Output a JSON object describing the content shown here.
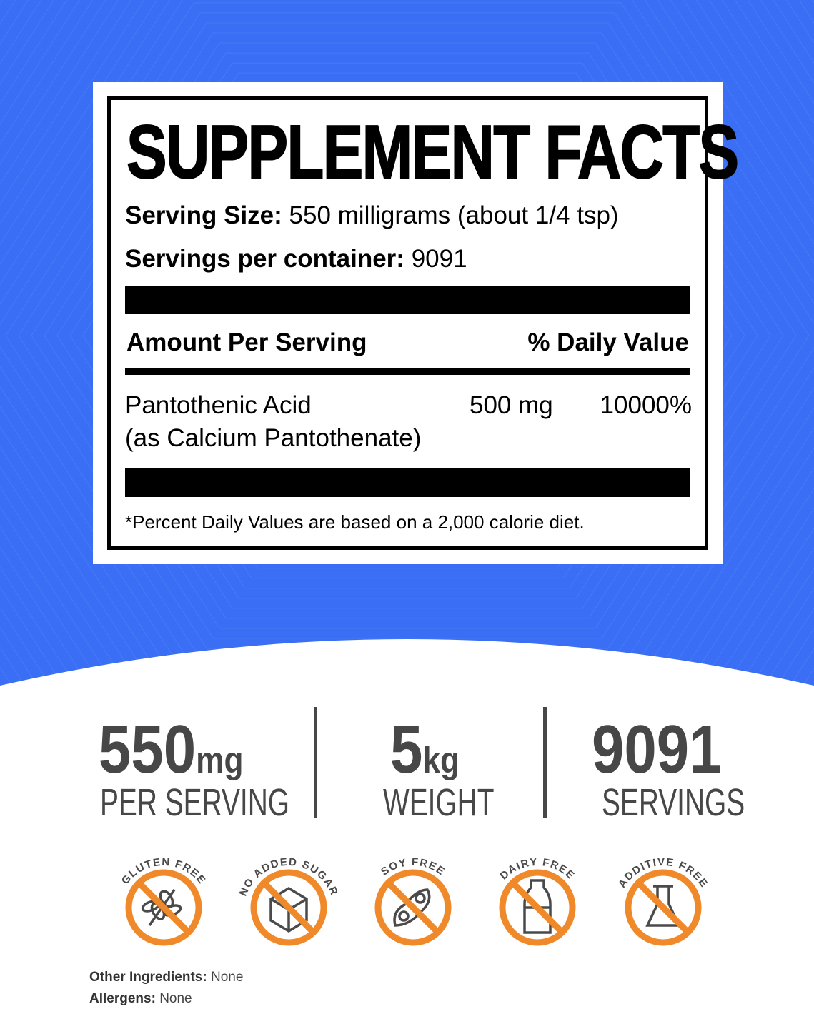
{
  "label": {
    "title": "SUPPLEMENT FACTS",
    "serving_size_label": "Serving Size:",
    "serving_size_value": "550 milligrams (about 1/4 tsp)",
    "servings_label": "Servings per container:",
    "servings_value": "9091",
    "amount_header": "Amount Per Serving",
    "dv_header": "% Daily Value",
    "nutrient_name": "Pantothenic Acid",
    "nutrient_source": "(as Calcium Pantothenate)",
    "nutrient_amount": "500 mg",
    "nutrient_dv": "10000%",
    "footnote": "*Percent Daily Values are based on a 2,000 calorie diet."
  },
  "stats": [
    {
      "value": "550",
      "unit": "mg",
      "caption": "PER SERVING"
    },
    {
      "value": "5",
      "unit": "kg",
      "caption": "WEIGHT"
    },
    {
      "value": "9091",
      "unit": "",
      "caption": "SERVINGS"
    }
  ],
  "badges": [
    {
      "label": "GLUTEN FREE",
      "icon": "wheat-icon"
    },
    {
      "label": "NO ADDED SUGAR",
      "icon": "sugar-cube-icon"
    },
    {
      "label": "SOY FREE",
      "icon": "soybean-icon"
    },
    {
      "label": "DAIRY FREE",
      "icon": "milk-bottle-icon"
    },
    {
      "label": "ADDITIVE FREE",
      "icon": "flask-icon"
    }
  ],
  "other_ingredients_label": "Other Ingredients:",
  "other_ingredients_value": "None",
  "allergens_label": "Allergens:",
  "allergens_value": "None",
  "colors": {
    "background_blue": "#3a6ff5",
    "badge_orange": "#f0892a",
    "stat_gray": "#474747"
  }
}
